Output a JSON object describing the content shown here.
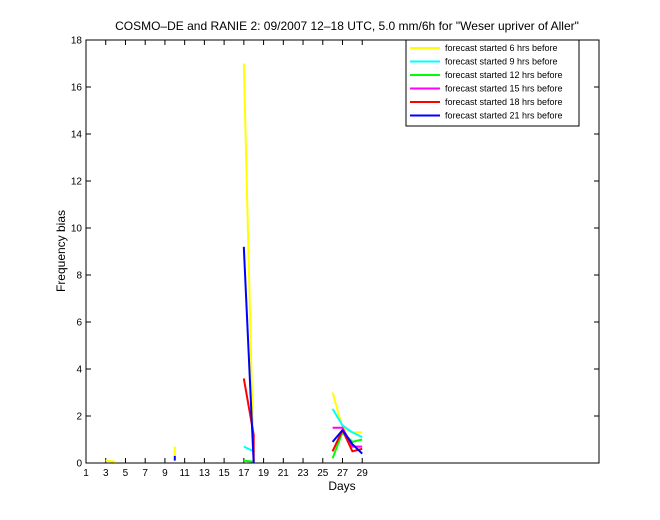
{
  "chart_data": {
    "type": "line",
    "title": "COSMO–DE and RANIE 2: 09/2007 12–18 UTC, 5.0 mm/6h for \"Weser upriver of Aller\"",
    "xlabel": "Days",
    "ylabel": "Frequency bias",
    "xlim": [
      1,
      53
    ],
    "ylim": [
      0,
      18
    ],
    "xticks": [
      1,
      3,
      5,
      7,
      9,
      11,
      13,
      15,
      17,
      19,
      21,
      23,
      25,
      27,
      29
    ],
    "yticks": [
      0,
      2,
      4,
      6,
      8,
      10,
      12,
      14,
      16,
      18
    ],
    "legend_position": "top-right",
    "grid": false,
    "series": [
      {
        "name": "forecast started 6 hrs before",
        "color": "#ffff00",
        "segments": [
          [
            [
              3,
              0.1
            ],
            [
              4,
              0.05
            ]
          ],
          [
            [
              10,
              0.7
            ],
            [
              10,
              0.3
            ]
          ],
          [
            [
              17,
              17.0
            ],
            [
              18,
              0
            ]
          ],
          [
            [
              26,
              3.0
            ],
            [
              27,
              1.5
            ],
            [
              28,
              1.3
            ],
            [
              29,
              1.3
            ]
          ]
        ]
      },
      {
        "name": "forecast started 9 hrs before",
        "color": "#00ffff",
        "segments": [
          [
            [
              17,
              0.7
            ],
            [
              18,
              0.5
            ]
          ],
          [
            [
              26,
              2.3
            ],
            [
              27,
              1.6
            ],
            [
              28,
              1.3
            ],
            [
              29,
              1.1
            ]
          ]
        ]
      },
      {
        "name": "forecast started 12 hrs before",
        "color": "#00ff00",
        "segments": [
          [
            [
              17,
              0.1
            ],
            [
              18,
              0.05
            ]
          ],
          [
            [
              26,
              0.2
            ],
            [
              27,
              1.3
            ],
            [
              28,
              0.9
            ],
            [
              29,
              1.0
            ]
          ]
        ]
      },
      {
        "name": "forecast started 15 hrs before",
        "color": "#ff00ff",
        "segments": [
          [
            [
              26,
              1.5
            ],
            [
              27,
              1.5
            ],
            [
              28,
              0.7
            ],
            [
              29,
              0.7
            ]
          ]
        ]
      },
      {
        "name": "forecast started 18 hrs before",
        "color": "#ff0000",
        "segments": [
          [
            [
              17,
              3.6
            ],
            [
              18,
              1.2
            ],
            [
              18,
              0
            ]
          ],
          [
            [
              26,
              0.5
            ],
            [
              27,
              1.4
            ],
            [
              28,
              0.5
            ],
            [
              29,
              0.6
            ]
          ]
        ]
      },
      {
        "name": "forecast started 21 hrs before",
        "color": "#0000ff",
        "segments": [
          [
            [
              10,
              0.3
            ],
            [
              10,
              0.1
            ]
          ],
          [
            [
              17,
              9.2
            ],
            [
              18,
              0
            ]
          ],
          [
            [
              26,
              0.9
            ],
            [
              27,
              1.4
            ],
            [
              28,
              0.8
            ],
            [
              29,
              0.4
            ]
          ]
        ]
      }
    ]
  }
}
